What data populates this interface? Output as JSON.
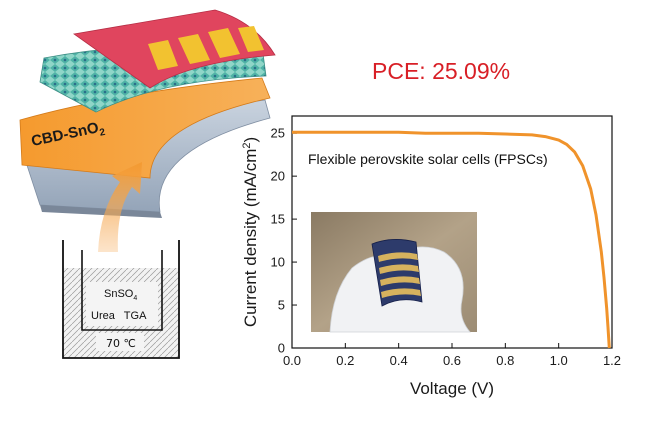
{
  "headline": "PCE: 25.09%",
  "schematic": {
    "layer_label": "CBD-SnO",
    "layer_label_sub": "2",
    "bath": {
      "compound": "SnSO",
      "compound_sub": "4",
      "reagents": "Urea   TGA",
      "temperature": "70 ℃"
    }
  },
  "inset": {
    "label": "Flexible perovskite solar cells (FPSCs)"
  },
  "colors": {
    "curve": "#f0932b",
    "arrow": "#f39a32",
    "headline": "#d81f26",
    "electrode": "#e0455e",
    "substrate": "#a9b7c9"
  },
  "chart_data": {
    "type": "line",
    "title": "",
    "xlabel": "Voltage (V)",
    "ylabel": "Current density (mA/cm²)",
    "ylabel_main": "Current density (mA/cm",
    "ylabel_sup": "2",
    "ylabel_tail": ")",
    "xlim": [
      0.0,
      1.2
    ],
    "ylim": [
      0,
      27
    ],
    "xticks": [
      0.0,
      0.2,
      0.4,
      0.6,
      0.8,
      1.0,
      1.2
    ],
    "xtick_labels": [
      "0.0",
      "0.2",
      "0.4",
      "0.6",
      "0.8",
      "1.0",
      "1.2"
    ],
    "yticks": [
      0,
      5,
      10,
      15,
      20,
      25
    ],
    "ytick_labels": [
      "0",
      "5",
      "10",
      "15",
      "20",
      "25"
    ],
    "series": [
      {
        "x": [
          0.0,
          0.1,
          0.2,
          0.3,
          0.4,
          0.5,
          0.6,
          0.7,
          0.8,
          0.9,
          0.95,
          1.0,
          1.03,
          1.06,
          1.09,
          1.12,
          1.14,
          1.16,
          1.17,
          1.18,
          1.185,
          1.19
        ],
        "y": [
          25.1,
          25.1,
          25.1,
          25.1,
          25.1,
          25.0,
          25.0,
          25.0,
          24.9,
          24.8,
          24.6,
          24.2,
          23.7,
          22.8,
          21.2,
          18.5,
          15.5,
          11.2,
          8.2,
          4.6,
          2.4,
          0.0
        ]
      }
    ],
    "grid": false
  }
}
